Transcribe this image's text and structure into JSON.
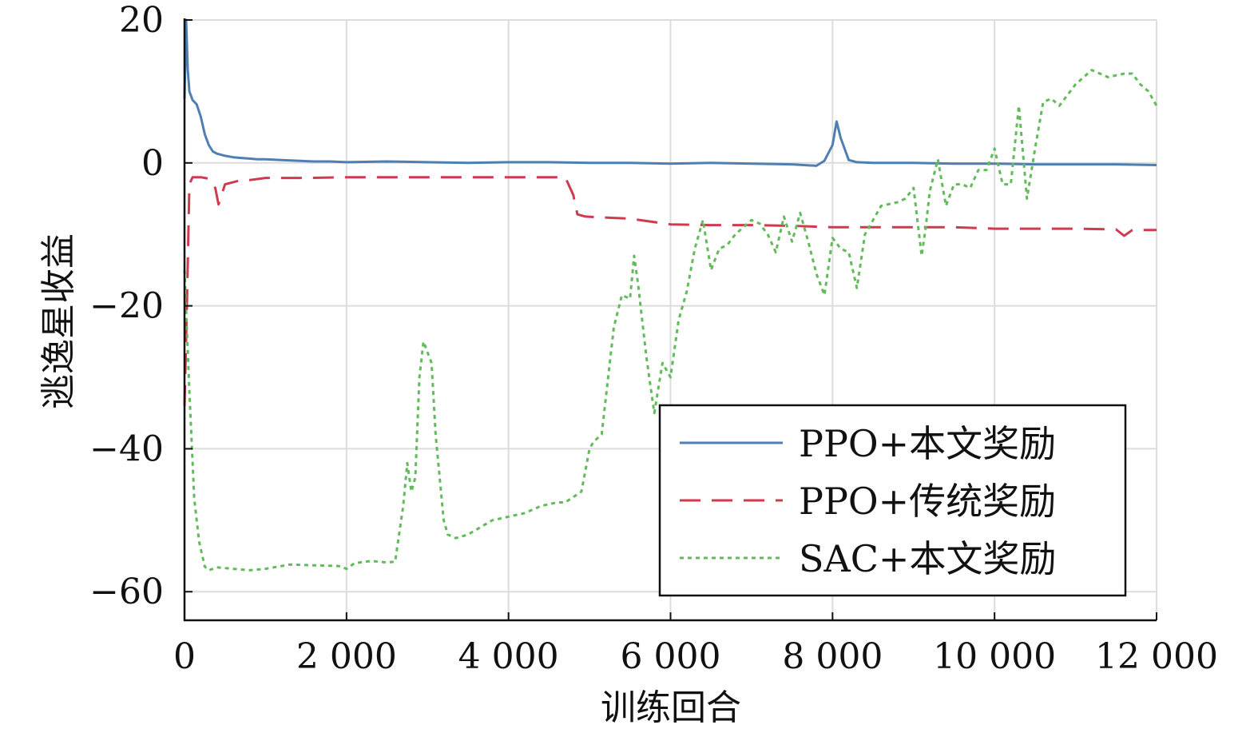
{
  "chart_data": {
    "type": "line",
    "xlabel": "训练回合",
    "ylabel": "逃逸星收益",
    "xlim": [
      0,
      12000
    ],
    "ylim": [
      -64,
      20
    ],
    "xticks": [
      0,
      2000,
      4000,
      6000,
      8000,
      10000,
      12000
    ],
    "xtick_labels": [
      "0",
      "2 000",
      "4 000",
      "6 000",
      "8 000",
      "10 000",
      "12 000"
    ],
    "yticks": [
      -60,
      -40,
      -20,
      0,
      20
    ],
    "ytick_labels": [
      "−60",
      "−40",
      "−20",
      "0",
      "20"
    ],
    "grid": true,
    "legend_position": "bottom-right",
    "series": [
      {
        "name": "PPO+本文奖励",
        "color": "#4f7fb2",
        "style": "solid",
        "x": [
          0,
          20,
          40,
          60,
          100,
          150,
          200,
          250,
          300,
          350,
          400,
          500,
          600,
          700,
          800,
          900,
          1000,
          1200,
          1400,
          1600,
          1800,
          2000,
          2500,
          3000,
          3500,
          4000,
          4500,
          5000,
          5500,
          6000,
          6500,
          7000,
          7500,
          7800,
          7900,
          8000,
          8050,
          8100,
          8200,
          8300,
          8500,
          9000,
          9500,
          10000,
          10500,
          11000,
          11500,
          12000
        ],
        "y": [
          9,
          20,
          13,
          10,
          8.8,
          8.2,
          6.5,
          4,
          2.5,
          1.6,
          1.3,
          1.0,
          0.8,
          0.7,
          0.6,
          0.5,
          0.5,
          0.4,
          0.3,
          0.2,
          0.2,
          0.1,
          0.2,
          0.1,
          0.0,
          0.1,
          0.1,
          0.0,
          0.0,
          -0.1,
          0.0,
          -0.1,
          -0.2,
          -0.4,
          0.3,
          2.5,
          5.8,
          3.5,
          0.4,
          0.1,
          0.0,
          0.0,
          -0.1,
          -0.1,
          -0.2,
          -0.2,
          -0.2,
          -0.3
        ]
      },
      {
        "name": "PPO+传统奖励",
        "color": "#cf3a4f",
        "style": "dashed",
        "x": [
          0,
          30,
          60,
          100,
          200,
          300,
          380,
          420,
          500,
          600,
          700,
          800,
          1000,
          1500,
          2000,
          2500,
          3000,
          3500,
          4000,
          4500,
          4700,
          4800,
          4850,
          4950,
          5100,
          5500,
          6000,
          6500,
          7000,
          7500,
          8000,
          8500,
          9000,
          9500,
          10000,
          10500,
          11000,
          11500,
          11600,
          11700,
          12000
        ],
        "y": [
          -34,
          -20,
          -3,
          -2,
          -2,
          -2.2,
          -3.5,
          -5.8,
          -3,
          -2.7,
          -2.4,
          -2.4,
          -2.1,
          -2.1,
          -2.0,
          -2.0,
          -2.0,
          -2.0,
          -2.0,
          -2.0,
          -2.0,
          -4.5,
          -7.2,
          -7.5,
          -7.6,
          -7.8,
          -8.6,
          -8.7,
          -8.7,
          -8.8,
          -9.0,
          -9.0,
          -9.0,
          -9.0,
          -9.2,
          -9.2,
          -9.2,
          -9.3,
          -10.2,
          -9.4,
          -9.4
        ]
      },
      {
        "name": "SAC+本文奖励",
        "color": "#62bb5a",
        "style": "dotted",
        "x": [
          0,
          60,
          120,
          180,
          250,
          300,
          400,
          600,
          800,
          1000,
          1300,
          1600,
          1900,
          2000,
          2100,
          2300,
          2500,
          2600,
          2700,
          2750,
          2800,
          2850,
          2900,
          2950,
          3050,
          3100,
          3200,
          3250,
          3350,
          3500,
          3800,
          4000,
          4200,
          4400,
          4600,
          4700,
          4900,
          5000,
          5050,
          5150,
          5300,
          5400,
          5500,
          5550,
          5600,
          5700,
          5750,
          5800,
          5900,
          6000,
          6100,
          6200,
          6300,
          6400,
          6500,
          6600,
          6700,
          6800,
          7000,
          7100,
          7200,
          7300,
          7400,
          7500,
          7600,
          7700,
          7800,
          7900,
          8000,
          8100,
          8200,
          8300,
          8400,
          8600,
          8800,
          8900,
          9000,
          9100,
          9150,
          9200,
          9300,
          9400,
          9500,
          9600,
          9700,
          9800,
          9900,
          10000,
          10100,
          10200,
          10300,
          10400,
          10500,
          10600,
          10700,
          10800,
          11000,
          11200,
          11400,
          11600,
          11700,
          11800,
          11900,
          12000
        ],
        "y": [
          -15,
          -32,
          -47,
          -53,
          -56.5,
          -57,
          -56.6,
          -56.8,
          -57,
          -56.8,
          -56.2,
          -56.3,
          -56.4,
          -56.8,
          -56.0,
          -55.7,
          -55.9,
          -55.8,
          -48,
          -42,
          -46,
          -44,
          -30,
          -25,
          -28,
          -38,
          -50,
          -52,
          -52.5,
          -52.0,
          -50,
          -49.5,
          -49,
          -48,
          -47.5,
          -47.5,
          -46,
          -40,
          -39,
          -38,
          -23,
          -18.5,
          -19,
          -13,
          -17,
          -27,
          -31,
          -35,
          -28,
          -30,
          -22,
          -18,
          -12,
          -8,
          -15,
          -12,
          -11.5,
          -10,
          -8,
          -8.5,
          -10,
          -12.5,
          -7.5,
          -11,
          -7,
          -11,
          -15.5,
          -18.5,
          -10.5,
          -12,
          -12.5,
          -17.5,
          -10,
          -6,
          -5.5,
          -5,
          -3.5,
          -13,
          -9,
          -4,
          0.5,
          -6,
          -3,
          -3,
          -3.5,
          -1,
          -1,
          2,
          -3,
          -3,
          8,
          -5,
          2,
          8.5,
          9,
          8,
          11,
          13,
          12,
          12.5,
          12.5,
          11,
          10,
          8
        ]
      }
    ]
  }
}
